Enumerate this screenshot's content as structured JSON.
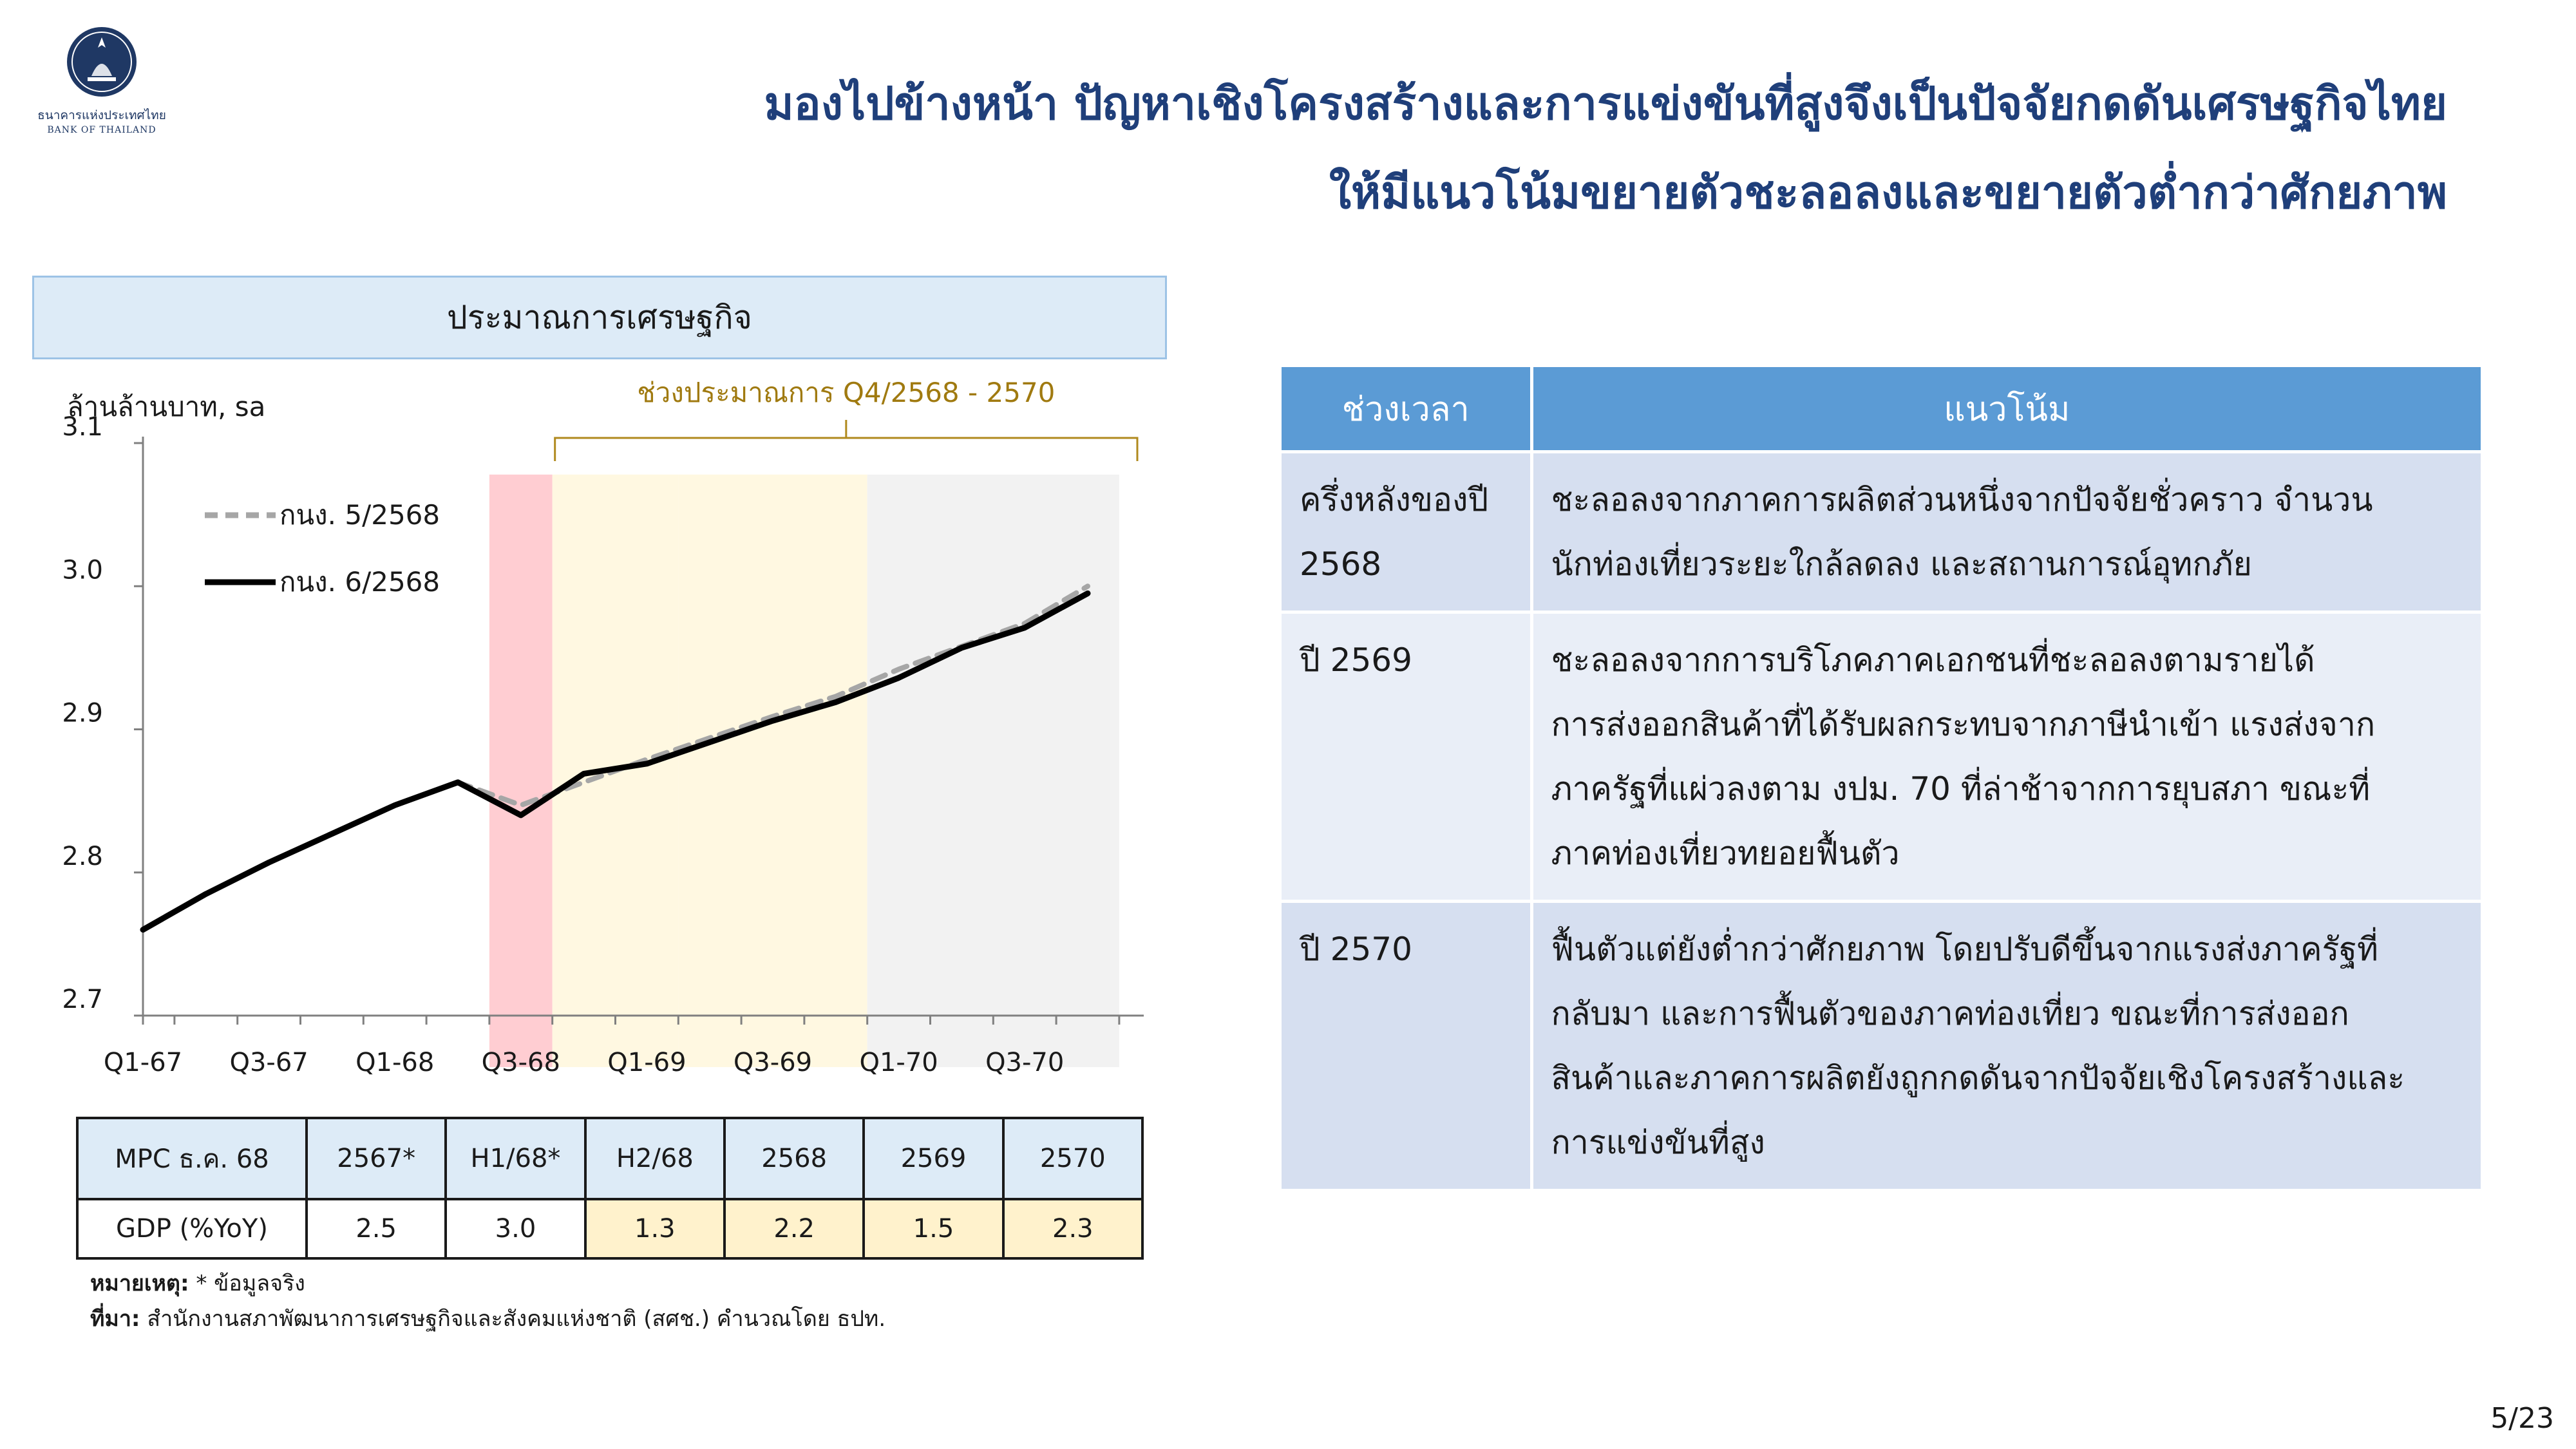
{
  "logo": {
    "name_th": "ธนาคารแห่งประเทศไทย",
    "name_en": "BANK OF THAILAND"
  },
  "title": {
    "line1": "มองไปข้างหน้า ปัญหาเชิงโครงสร้างและการแข่งขันที่สูงจึงเป็นปัจจัยกดดันเศรษฐกิจไทย",
    "line2": "ให้มีแนวโน้มขยายตัวชะลอลงและขยายตัวต่ำกว่าศักยภาพ"
  },
  "chart_header": "ประมาณการเศรษฐกิจ",
  "chart_data": {
    "type": "line",
    "ylabel": "ล้านล้านบาท, sa",
    "ylim": [
      2.7,
      3.1
    ],
    "yticks": [
      "3.1",
      "3.0",
      "2.9",
      "2.8",
      "2.7"
    ],
    "xtick_labels": [
      "Q1-67",
      "Q3-67",
      "Q1-68",
      "Q3-68",
      "Q1-69",
      "Q3-69",
      "Q1-70",
      "Q3-70"
    ],
    "x": [
      "Q1-67",
      "Q2-67",
      "Q3-67",
      "Q4-67",
      "Q1-68",
      "Q2-68",
      "Q3-68",
      "Q4-68",
      "Q1-69",
      "Q2-69",
      "Q3-69",
      "Q4-69",
      "Q1-70",
      "Q2-70",
      "Q3-70",
      "Q4-70"
    ],
    "series": [
      {
        "name": "กนง. 5/2568",
        "style": "dashed",
        "color": "#a6a6a6",
        "values": [
          2.76,
          2.785,
          2.807,
          2.827,
          2.847,
          2.863,
          2.847,
          2.863,
          2.879,
          2.894,
          2.909,
          2.923,
          2.942,
          2.958,
          2.974,
          3.0
        ]
      },
      {
        "name": "กนง. 6/2568",
        "style": "solid",
        "color": "#000000",
        "values": [
          2.76,
          2.785,
          2.807,
          2.827,
          2.847,
          2.863,
          2.84,
          2.869,
          2.876,
          2.891,
          2.906,
          2.919,
          2.936,
          2.957,
          2.971,
          2.995
        ]
      }
    ],
    "shaded_ranges": [
      {
        "from": "Q3-68",
        "to": "Q3-68",
        "color": "#ffcdd2"
      },
      {
        "from": "Q4-68",
        "to": "Q1-69",
        "color": "#fff8e1"
      },
      {
        "from": "Q2-69",
        "to": "Q4-69",
        "color": "#fff8e1"
      },
      {
        "from": "Q1-70",
        "to": "Q4-70",
        "color": "#f2f2f2"
      }
    ],
    "forecast_bracket": {
      "label": "ช่วงประมาณการ Q4/2568 - 2570",
      "from": "Q4-68",
      "to": "Q4-70"
    },
    "legend": "top-left"
  },
  "gdp_table": {
    "header": [
      "MPC ธ.ค. 68",
      "2567*",
      "H1/68*",
      "H2/68",
      "2568",
      "2569",
      "2570"
    ],
    "row": [
      "GDP (%YoY)",
      "2.5",
      "3.0",
      "1.3",
      "2.2",
      "1.5",
      "2.3"
    ]
  },
  "footnote": {
    "note_label": "หมายเหตุ:",
    "note_text": " * ข้อมูลจริง",
    "source_label": "ที่มา:",
    "source_text": " สำนักงานสภาพัฒนาการเศรษฐกิจและสังคมแห่งชาติ (สศช.) คำนวณโดย ธปท."
  },
  "outlook_table": {
    "headers": [
      "ช่วงเวลา",
      "แนวโน้ม"
    ],
    "rows": [
      {
        "period_lines": [
          "ครึ่งหลังของปี",
          "2568"
        ],
        "trend_lines": [
          "ชะลอลงจากภาคการผลิตส่วนหนึ่งจากปัจจัยชั่วคราว จำนวน",
          "นักท่องเที่ยวระยะใกล้ลดลง และสถานการณ์อุทกภัย"
        ]
      },
      {
        "period_lines": [
          "ปี 2569"
        ],
        "trend_lines": [
          "ชะลอลงจากการบริโภคภาคเอกชนที่ชะลอลงตามรายได้",
          "การส่งออกสินค้าที่ได้รับผลกระทบจากภาษีนำเข้า แรงส่งจาก",
          "ภาครัฐที่แผ่วลงตาม งปม. 70 ที่ล่าช้าจากการยุบสภา ขณะที่",
          "ภาคท่องเที่ยวทยอยฟื้นตัว"
        ]
      },
      {
        "period_lines": [
          "ปี 2570"
        ],
        "trend_lines": [
          "ฟื้นตัวแต่ยังต่ำกว่าศักยภาพ โดยปรับดีขึ้นจากแรงส่งภาครัฐที่",
          "กลับมา และการฟื้นตัวของภาคท่องเที่ยว ขณะที่การส่งออก",
          "สินค้าและภาคการผลิตยังถูกกดดันจากปัจจัยเชิงโครงสร้างและ",
          "การแข่งขันที่สูง"
        ]
      }
    ]
  },
  "page_number": "5/23"
}
